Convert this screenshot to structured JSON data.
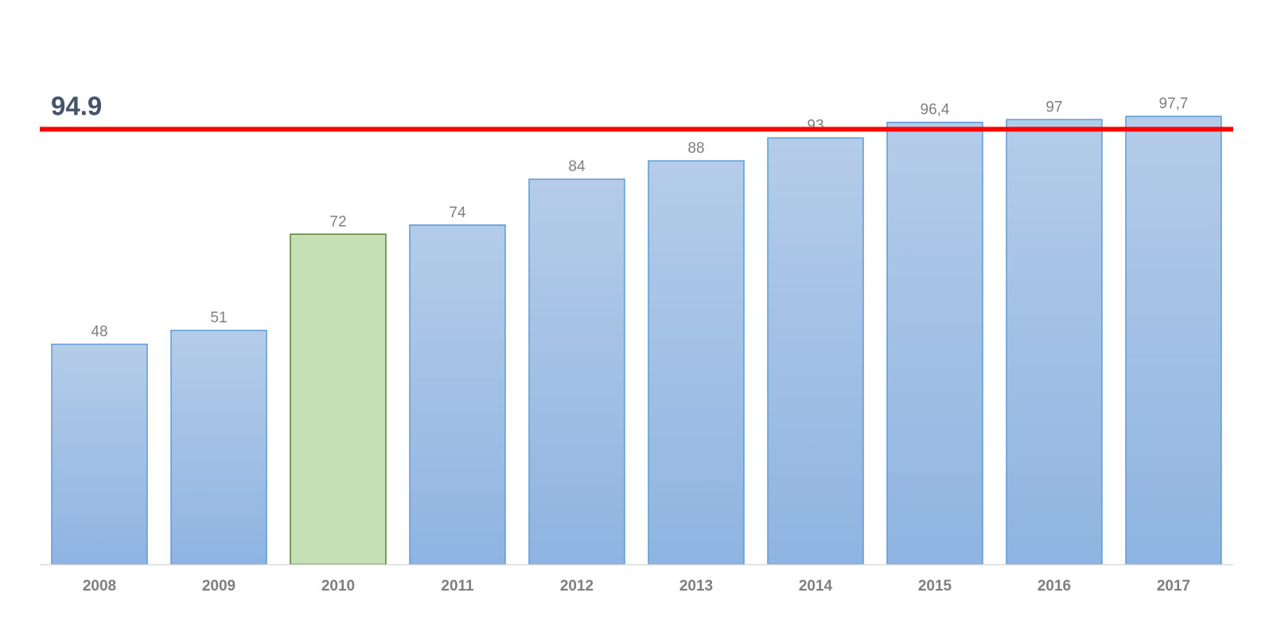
{
  "chart_data": {
    "type": "bar",
    "categories": [
      "2008",
      "2009",
      "2010",
      "2011",
      "2012",
      "2013",
      "2014",
      "2015",
      "2016",
      "2017"
    ],
    "values": [
      48,
      51,
      72,
      74,
      84,
      88,
      93,
      96.4,
      97,
      97.7
    ],
    "data_labels": [
      "48",
      "51",
      "72",
      "74",
      "84",
      "88",
      "93",
      "96,4",
      "97",
      "97,7"
    ],
    "highlight_index": 2,
    "ylim": [
      0,
      100
    ],
    "grid": false,
    "legend": "none",
    "reference_line": {
      "value": 94.9,
      "label": "94.9",
      "color": "#ff0000"
    },
    "colors": {
      "bar_top": "#b4cce9",
      "bar_bottom": "#8fb4e1",
      "bar_border": "#5b9bd5",
      "highlight_fill": "#c5e0b4",
      "highlight_border": "#548235",
      "axis_line": "#d9d9d9",
      "label_text": "#7f7f7f",
      "ref_text": "#44546a"
    }
  }
}
